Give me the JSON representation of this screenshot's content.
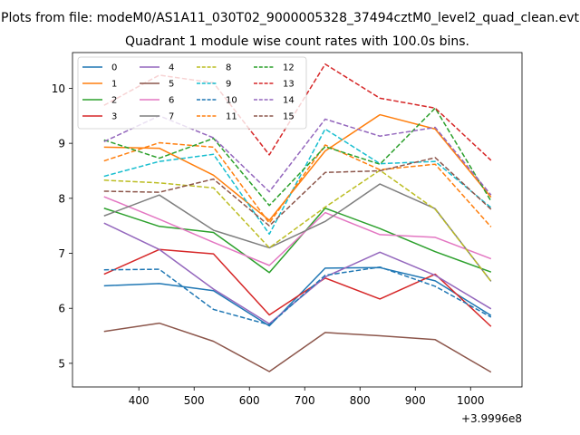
{
  "figure": {
    "suptitle": "Plots from file: modeM0/AS1A11_030T02_9000005328_37494cztM0_level2_quad_clean.evt",
    "title": "Quadrant 1 module wise count rates with 100.0s bins.",
    "offset_label": "+3.9996e8"
  },
  "chart_data": {
    "type": "line",
    "title": "Quadrant 1 module wise count rates with 100.0s bins.",
    "xlabel": "",
    "ylabel": "",
    "x_offset": 399960000,
    "x": [
      337,
      437,
      535,
      636,
      737,
      836,
      936,
      1037
    ],
    "xlim": [
      280,
      1093
    ],
    "ylim": [
      4.57,
      10.65
    ],
    "xticks": [
      400,
      500,
      600,
      700,
      800,
      900,
      1000
    ],
    "yticks": [
      5,
      6,
      7,
      8,
      9,
      10
    ],
    "grid": false,
    "legend": {
      "placement": "top-left",
      "columns": 4
    },
    "series": [
      {
        "name": "0",
        "color": "#1f77b4",
        "dash": "solid",
        "values": [
          6.41,
          6.45,
          6.32,
          5.68,
          6.73,
          6.74,
          6.5,
          5.87
        ]
      },
      {
        "name": "1",
        "color": "#ff7f0e",
        "dash": "solid",
        "values": [
          8.93,
          8.91,
          8.42,
          7.6,
          8.86,
          9.52,
          9.26,
          8.02
        ]
      },
      {
        "name": "2",
        "color": "#2ca02c",
        "dash": "solid",
        "values": [
          7.82,
          7.49,
          7.38,
          6.65,
          7.82,
          7.45,
          7.03,
          6.66
        ]
      },
      {
        "name": "3",
        "color": "#d62728",
        "dash": "solid",
        "values": [
          6.62,
          7.07,
          6.99,
          5.88,
          6.55,
          6.17,
          6.62,
          5.67
        ]
      },
      {
        "name": "4",
        "color": "#9467bd",
        "dash": "solid",
        "values": [
          7.55,
          7.07,
          6.35,
          5.72,
          6.57,
          7.02,
          6.6,
          5.99
        ]
      },
      {
        "name": "5",
        "color": "#8c564b",
        "dash": "solid",
        "values": [
          5.58,
          5.73,
          5.4,
          4.85,
          5.56,
          5.5,
          5.43,
          4.84
        ]
      },
      {
        "name": "6",
        "color": "#e377c2",
        "dash": "solid",
        "values": [
          8.03,
          7.62,
          7.2,
          6.78,
          7.74,
          7.34,
          7.29,
          6.9
        ]
      },
      {
        "name": "7",
        "color": "#7f7f7f",
        "dash": "solid",
        "values": [
          7.68,
          8.06,
          7.42,
          7.1,
          7.58,
          8.26,
          7.81,
          6.49
        ]
      },
      {
        "name": "8",
        "color": "#bcbd22",
        "dash": "dashed",
        "values": [
          8.33,
          8.28,
          8.19,
          7.1,
          7.84,
          8.51,
          7.8,
          6.49
        ]
      },
      {
        "name": "9",
        "color": "#17becf",
        "dash": "dashed",
        "values": [
          8.4,
          8.67,
          8.8,
          7.35,
          9.26,
          8.63,
          8.67,
          7.83
        ]
      },
      {
        "name": "10",
        "color": "#1f77b4",
        "dash": "dashed",
        "values": [
          6.7,
          6.71,
          5.98,
          5.7,
          6.6,
          6.75,
          6.4,
          5.84
        ]
      },
      {
        "name": "11",
        "color": "#ff7f0e",
        "dash": "dashed",
        "values": [
          8.68,
          9.01,
          8.93,
          7.55,
          8.97,
          8.52,
          8.62,
          7.48
        ]
      },
      {
        "name": "12",
        "color": "#2ca02c",
        "dash": "dashed",
        "values": [
          9.06,
          8.73,
          9.09,
          7.87,
          8.94,
          8.62,
          9.64,
          7.95
        ]
      },
      {
        "name": "13",
        "color": "#d62728",
        "dash": "dashed",
        "values": [
          9.69,
          10.24,
          10.1,
          8.79,
          10.44,
          9.82,
          9.64,
          8.69
        ]
      },
      {
        "name": "14",
        "color": "#9467bd",
        "dash": "dashed",
        "values": [
          9.03,
          9.5,
          9.1,
          8.12,
          9.44,
          9.13,
          9.29,
          8.06
        ]
      },
      {
        "name": "15",
        "color": "#8c564b",
        "dash": "dashed",
        "values": [
          8.13,
          8.11,
          8.35,
          7.5,
          8.47,
          8.5,
          8.74,
          7.8
        ]
      }
    ]
  }
}
